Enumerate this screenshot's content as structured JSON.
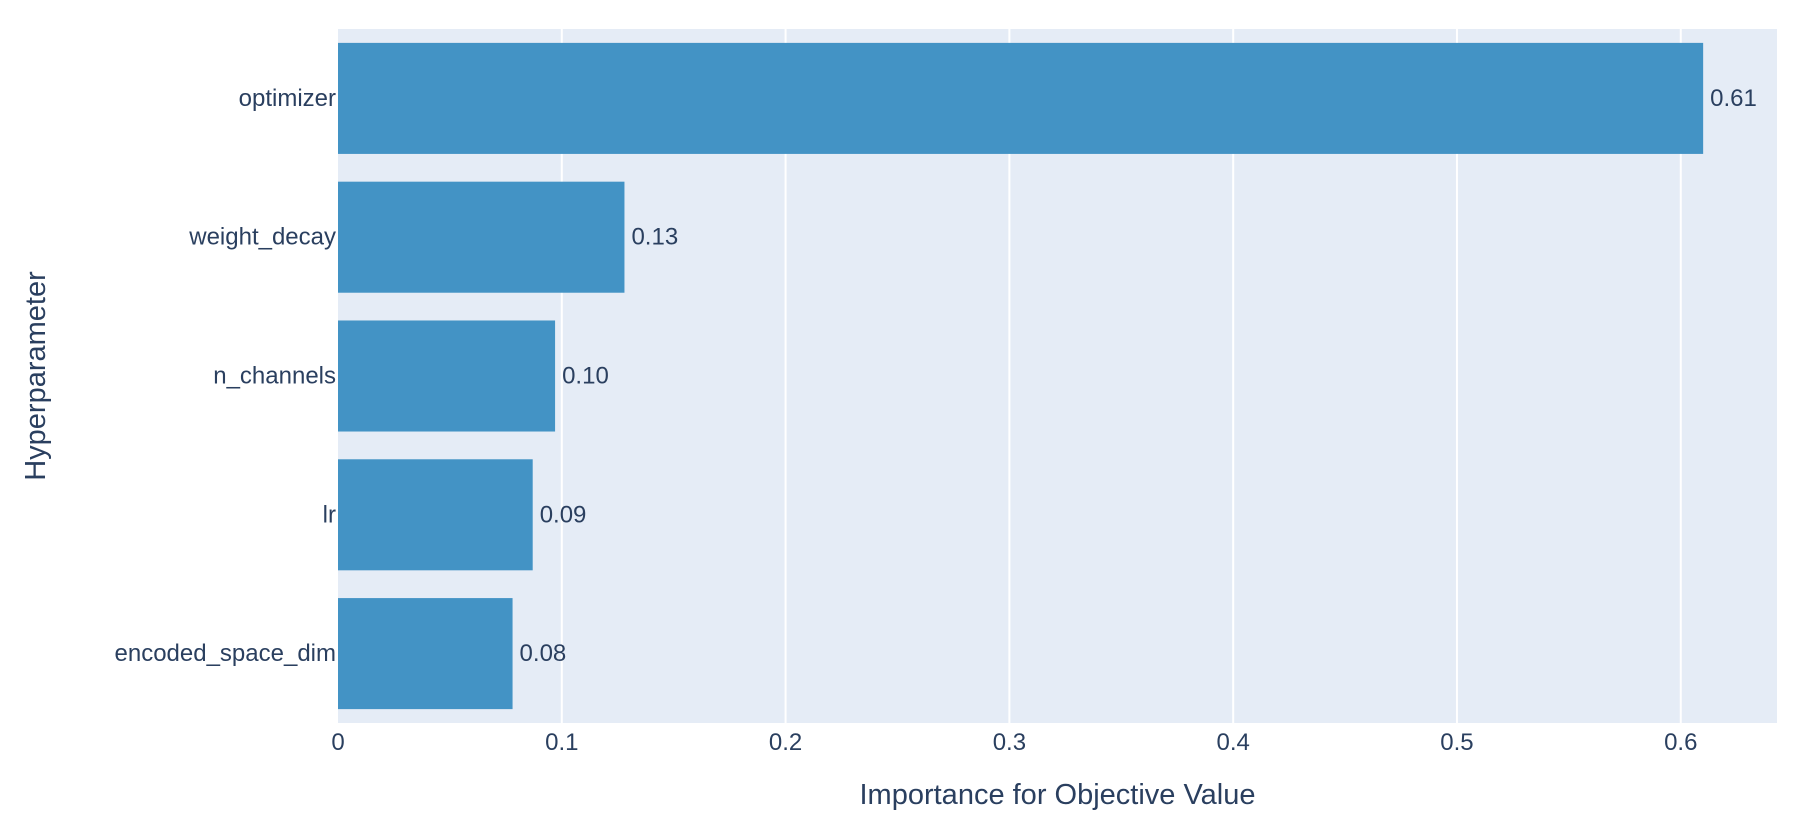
{
  "colors": {
    "plot_background": "#e5ecf6",
    "gridline": "#ffffff",
    "bar": "#4393c5",
    "text": "#2a3f5f"
  },
  "chart_data": {
    "type": "bar",
    "orientation": "horizontal",
    "title": "",
    "xlabel": "Importance for Objective Value",
    "ylabel": "Hyperparameter",
    "categories": [
      "optimizer",
      "weight_decay",
      "n_channels",
      "lr",
      "encoded_space_dim"
    ],
    "values": [
      0.61,
      0.13,
      0.1,
      0.09,
      0.08
    ],
    "bar_values": [
      0.61,
      0.128,
      0.097,
      0.087,
      0.078
    ],
    "data_labels": [
      "0.61",
      "0.13",
      "0.10",
      "0.09",
      "0.08"
    ],
    "xlim": [
      0,
      0.643
    ],
    "xticks": [
      0,
      0.1,
      0.2,
      0.3,
      0.4,
      0.5,
      0.6
    ],
    "xtick_labels": [
      "0",
      "0.1",
      "0.2",
      "0.3",
      "0.4",
      "0.5",
      "0.6"
    ],
    "grid": true,
    "legend": "none"
  }
}
